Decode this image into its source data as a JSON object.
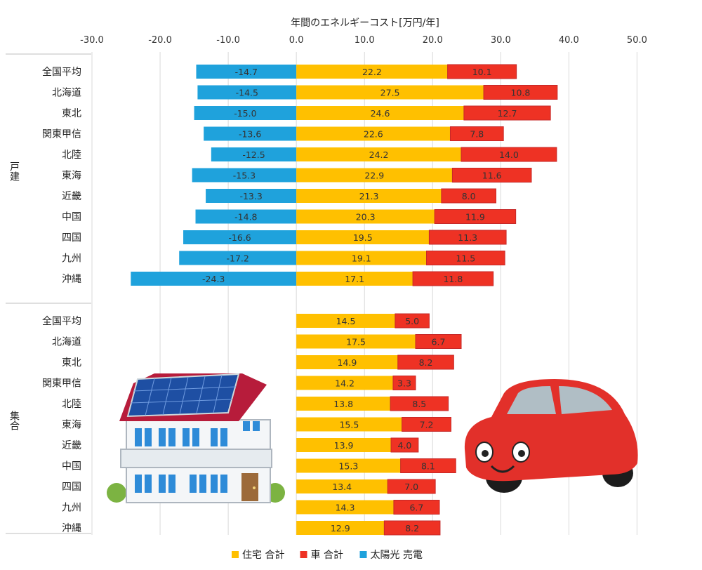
{
  "chart_data": {
    "type": "bar",
    "orientation": "horizontal",
    "stacked": true,
    "title": "年間のエネルギーコスト[万円/年]",
    "xlim": [
      -30,
      50
    ],
    "xticks": [
      "-30.0",
      "-20.0",
      "-10.0",
      "0.0",
      "10.0",
      "20.0",
      "30.0",
      "40.0",
      "50.0"
    ],
    "grid": true,
    "legend_position": "bottom",
    "groups": [
      {
        "name": "戸建",
        "categories": [
          "全国平均",
          "北海道",
          "東北",
          "関東甲信",
          "北陸",
          "東海",
          "近畿",
          "中国",
          "四国",
          "九州",
          "沖縄"
        ],
        "series": [
          {
            "name": "太陽光売電",
            "values": [
              -14.7,
              -14.5,
              -15.0,
              -13.6,
              -12.5,
              -15.3,
              -13.3,
              -14.8,
              -16.6,
              -17.2,
              -24.3
            ],
            "labels": [
              "-14.7",
              "-14.5",
              "-15.0",
              "-13.6",
              "-12.5",
              "-15.3",
              "-13.3",
              "-14.8",
              "-16.6",
              "-17.2",
              "-24.3"
            ]
          },
          {
            "name": "住宅合計",
            "values": [
              22.2,
              27.5,
              24.6,
              22.6,
              24.2,
              22.9,
              21.3,
              20.3,
              19.5,
              19.1,
              17.1
            ],
            "labels": [
              "22.2",
              "27.5",
              "24.6",
              "22.6",
              "24.2",
              "22.9",
              "21.3",
              "20.3",
              "19.5",
              "19.1",
              "17.1"
            ]
          },
          {
            "name": "車合計",
            "values": [
              10.1,
              10.8,
              12.7,
              7.8,
              14.0,
              11.6,
              8.0,
              11.9,
              11.3,
              11.5,
              11.8
            ],
            "labels": [
              "10.1",
              "10.8",
              "12.7",
              "7.8",
              "14.0",
              "11.6",
              "8.0",
              "11.9",
              "11.3",
              "11.5",
              "11.8"
            ]
          }
        ]
      },
      {
        "name": "集合",
        "categories": [
          "全国平均",
          "北海道",
          "東北",
          "関東甲信",
          "北陸",
          "東海",
          "近畿",
          "中国",
          "四国",
          "九州",
          "沖縄"
        ],
        "series": [
          {
            "name": "住宅合計",
            "values": [
              14.5,
              17.5,
              14.9,
              14.2,
              13.8,
              15.5,
              13.9,
              15.3,
              13.4,
              14.3,
              12.9
            ],
            "labels": [
              "14.5",
              "17.5",
              "14.9",
              "14.2",
              "13.8",
              "15.5",
              "13.9",
              "15.3",
              "13.4",
              "14.3",
              "12.9"
            ]
          },
          {
            "name": "車合計",
            "values": [
              5.0,
              6.7,
              8.2,
              3.3,
              8.5,
              7.2,
              4.0,
              8.1,
              7.0,
              6.7,
              8.2
            ],
            "labels": [
              "5.0",
              "6.7",
              "8.2",
              "3.3",
              "8.5",
              "7.2",
              "4.0",
              "8.1",
              "7.0",
              "6.7",
              "8.2"
            ]
          }
        ]
      }
    ],
    "legend": [
      {
        "name": "住宅 合計",
        "color": "#FFC000"
      },
      {
        "name": "車 合計",
        "color": "#EE3224"
      },
      {
        "name": "太陽光 売電",
        "color": "#1FA2DC"
      }
    ],
    "colors": {
      "住宅合計": "#FFC000",
      "車合計": "#EE3224",
      "太陽光売電": "#1FA2DC"
    }
  },
  "illustrations": {
    "house": "house-with-solar-panels-illustration",
    "car": "smiling-red-car-illustration"
  }
}
